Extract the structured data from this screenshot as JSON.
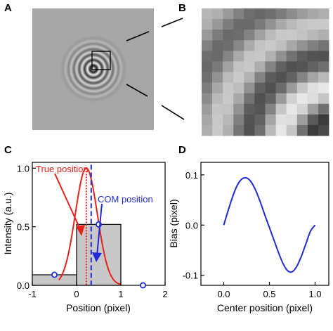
{
  "panels": {
    "a": {
      "label": "A"
    },
    "b": {
      "label": "B"
    },
    "c": {
      "label": "C"
    },
    "d": {
      "label": "D"
    }
  },
  "colors": {
    "true_curve": "#e8231d",
    "com_line": "#1f2bd6",
    "bar_fill": "#c8c8c8",
    "marker": "#1f2bd6"
  },
  "chart_data": [
    {
      "panel": "C",
      "type": "bar",
      "title": "",
      "xlabel": "Position (pixel)",
      "ylabel": "Intensity (a.u.)",
      "xlim": [
        -1,
        2
      ],
      "ylim": [
        0,
        1.05
      ],
      "xticks": [
        "-1",
        "0",
        "1",
        "2"
      ],
      "yticks": [
        "0.0",
        "0.5",
        "1.0"
      ],
      "bars": [
        {
          "x0": -1,
          "x1": 0,
          "value": 0.09
        },
        {
          "x0": 0,
          "x1": 1,
          "value": 0.52
        },
        {
          "x0": 1,
          "x1": 2,
          "value": 0.0
        }
      ],
      "markers": [
        {
          "x": -0.5,
          "y": 0.09
        },
        {
          "x": 0.5,
          "y": 0.52
        },
        {
          "x": 1.5,
          "y": 0.0
        }
      ],
      "true_curve": {
        "center": 0.22,
        "sigma": 0.25,
        "peak": 1.0
      },
      "true_position": 0.22,
      "com_position": 0.33,
      "annotations": {
        "true_label": "True position",
        "com_label": "COM position"
      }
    },
    {
      "panel": "D",
      "type": "line",
      "title": "",
      "xlabel": "Center position (pixel)",
      "ylabel": "Bias (pixel)",
      "xlim": [
        -0.25,
        1.15
      ],
      "ylim": [
        -0.12,
        0.125
      ],
      "xticks": [
        "0.0",
        "0.5",
        "1.0"
      ],
      "yticks": [
        "-0.1",
        "0.0",
        "0.1"
      ],
      "series": [
        {
          "x": [
            0,
            0.05,
            0.1,
            0.15,
            0.2,
            0.25,
            0.3,
            0.35,
            0.4,
            0.45,
            0.5,
            0.55,
            0.6,
            0.65,
            0.7,
            0.75,
            0.8,
            0.85,
            0.9,
            0.95,
            1.0
          ],
          "values": [
            0.0,
            0.03,
            0.058,
            0.08,
            0.092,
            0.094,
            0.086,
            0.069,
            0.046,
            0.02,
            -0.005,
            -0.03,
            -0.055,
            -0.077,
            -0.091,
            -0.093,
            -0.082,
            -0.062,
            -0.037,
            -0.012,
            0.0
          ]
        }
      ]
    }
  ]
}
